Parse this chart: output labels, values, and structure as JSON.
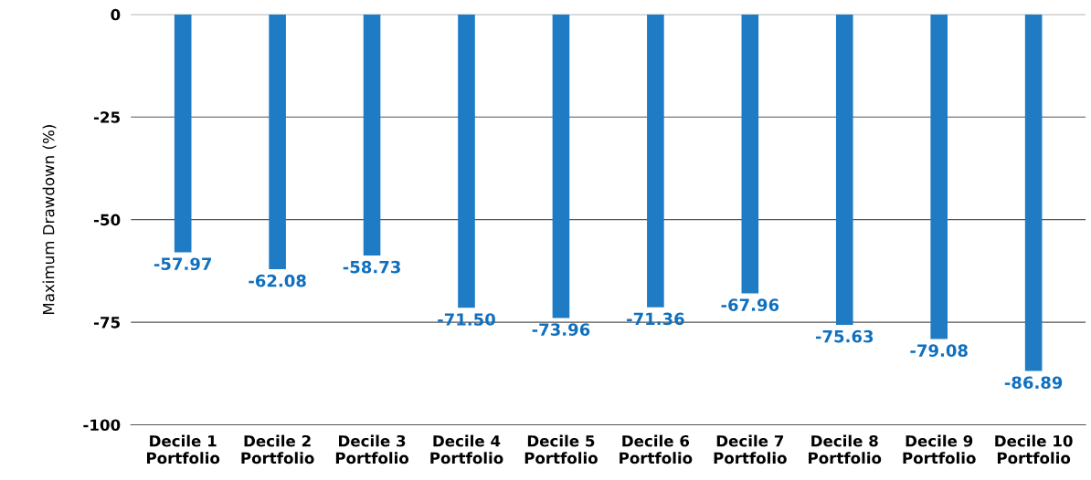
{
  "chart_data": {
    "type": "bar",
    "ylabel": "Maximum Drawdown (%)",
    "categories": [
      "Decile 1\nPortfolio",
      "Decile 2\nPortfolio",
      "Decile 3\nPortfolio",
      "Decile 4\nPortfolio",
      "Decile 5\nPortfolio",
      "Decile 6\nPortfolio",
      "Decile 7\nPortfolio",
      "Decile 8\nPortfolio",
      "Decile 9\nPortfolio",
      "Decile 10\nPortfolio"
    ],
    "values": [
      -57.97,
      -62.08,
      -58.73,
      -71.5,
      -73.96,
      -71.36,
      -67.96,
      -75.63,
      -79.08,
      -86.89
    ],
    "value_labels": [
      "-57.97",
      "-62.08",
      "-58.73",
      "-71.50",
      "-73.96",
      "-71.36",
      "-67.96",
      "-75.63",
      "-79.08",
      "-86.89"
    ],
    "color": "#1f7cc4",
    "ylim": [
      -100,
      0
    ],
    "yticks": [
      0,
      -25,
      -50,
      -75,
      -100
    ],
    "grid": "y"
  }
}
